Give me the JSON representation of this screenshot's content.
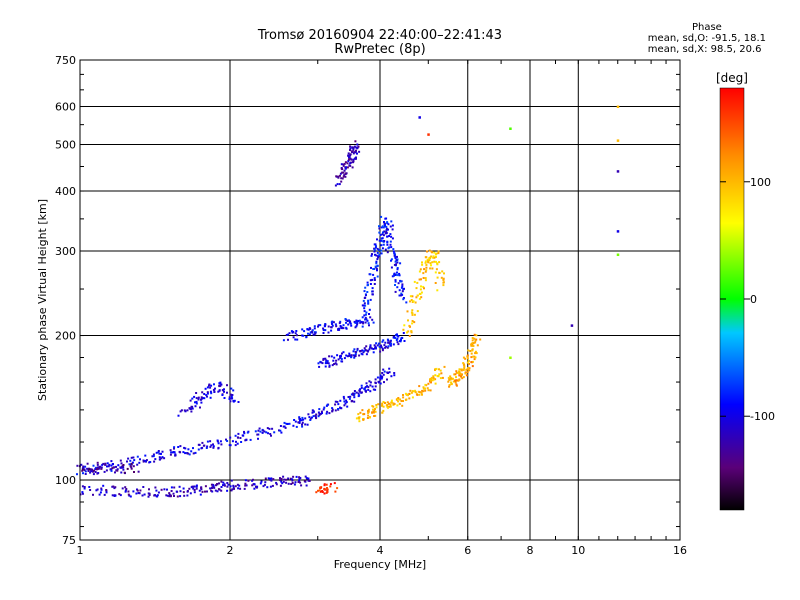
{
  "chart_data": {
    "type": "scatter",
    "title": "Tromsø 20160904 22:40:00–22:41:43",
    "subtitle": "RwPretec (8p)",
    "xlabel": "Frequency [MHz]",
    "ylabel": "Stationary phase Virtual Height [km]",
    "x_scale": "log",
    "y_scale": "log",
    "xlim": [
      1,
      16
    ],
    "ylim": [
      75,
      750
    ],
    "x_ticks": [
      1,
      2,
      4,
      6,
      8,
      10,
      16
    ],
    "y_ticks": [
      75,
      100,
      200,
      300,
      400,
      500,
      600,
      750
    ],
    "grid": true,
    "colorbar": {
      "label": "[deg]",
      "range": [
        -180,
        180
      ],
      "ticks": [
        100,
        0,
        -100
      ]
    },
    "phase_stats": {
      "heading": "Phase",
      "o_mode": "mean, sd,O: -91.5, 18.1",
      "x_mode": "mean, sd,X:  98.5, 20.6"
    },
    "traces": [
      {
        "x": [
          1.0,
          1.15,
          1.3,
          1.5,
          1.7,
          2.0,
          2.3,
          2.7,
          3.0,
          3.3,
          3.6,
          3.9,
          4.2
        ],
        "y": [
          105,
          107,
          110,
          114,
          117,
          121,
          126,
          132,
          138,
          144,
          152,
          160,
          170
        ],
        "phase": -100
      },
      {
        "x": [
          1.0,
          1.2,
          1.4,
          1.6,
          1.8,
          2.0,
          2.3,
          2.6,
          2.9
        ],
        "y": [
          96,
          95,
          95,
          95,
          96,
          98,
          99,
          100,
          100
        ],
        "phase": -115
      },
      {
        "x": [
          1.0,
          1.1,
          1.3
        ],
        "y": [
          106,
          107,
          106
        ],
        "phase": -130
      },
      {
        "x": [
          1.6,
          1.75,
          1.9,
          2.05
        ],
        "y": [
          138,
          150,
          158,
          145
        ],
        "phase": -105
      },
      {
        "x": [
          2.6,
          2.9,
          3.2,
          3.5,
          3.8
        ],
        "y": [
          200,
          205,
          210,
          213,
          215
        ],
        "phase": -95
      },
      {
        "x": [
          3.0,
          3.3,
          3.6,
          3.9,
          4.2,
          4.4
        ],
        "y": [
          175,
          180,
          185,
          190,
          195,
          200
        ],
        "phase": -100
      },
      {
        "x": [
          3.3,
          3.4,
          3.5,
          3.55
        ],
        "y": [
          420,
          450,
          480,
          500
        ],
        "phase": -120
      },
      {
        "x": [
          3.7,
          3.8,
          3.9,
          4.0,
          4.1,
          4.2,
          4.3,
          4.4
        ],
        "y": [
          220,
          250,
          290,
          320,
          350,
          300,
          270,
          240
        ],
        "phase": -90
      },
      {
        "x": [
          3.6,
          3.9,
          4.2,
          4.6,
          5.0,
          5.3
        ],
        "y": [
          135,
          140,
          145,
          150,
          158,
          170
        ],
        "phase": 100
      },
      {
        "x": [
          4.5,
          4.7,
          4.9,
          5.1,
          5.3
        ],
        "y": [
          200,
          240,
          280,
          300,
          250
        ],
        "phase": 95
      },
      {
        "x": [
          5.5,
          5.7,
          5.9,
          6.1,
          6.2
        ],
        "y": [
          160,
          165,
          170,
          185,
          200
        ],
        "phase": 110
      },
      {
        "x": [
          3.0,
          3.2
        ],
        "y": [
          96,
          97
        ],
        "phase": 160
      }
    ],
    "outliers": [
      {
        "x": 4.8,
        "y": 570,
        "phase": -100
      },
      {
        "x": 5.0,
        "y": 525,
        "phase": 160
      },
      {
        "x": 7.3,
        "y": 540,
        "phase": 20
      },
      {
        "x": 7.3,
        "y": 180,
        "phase": 40
      },
      {
        "x": 9.7,
        "y": 210,
        "phase": -120
      },
      {
        "x": 12.0,
        "y": 600,
        "phase": 100
      },
      {
        "x": 12.0,
        "y": 510,
        "phase": 100
      },
      {
        "x": 12.0,
        "y": 440,
        "phase": -120
      },
      {
        "x": 12.0,
        "y": 330,
        "phase": -100
      },
      {
        "x": 12.0,
        "y": 295,
        "phase": 30
      }
    ]
  }
}
